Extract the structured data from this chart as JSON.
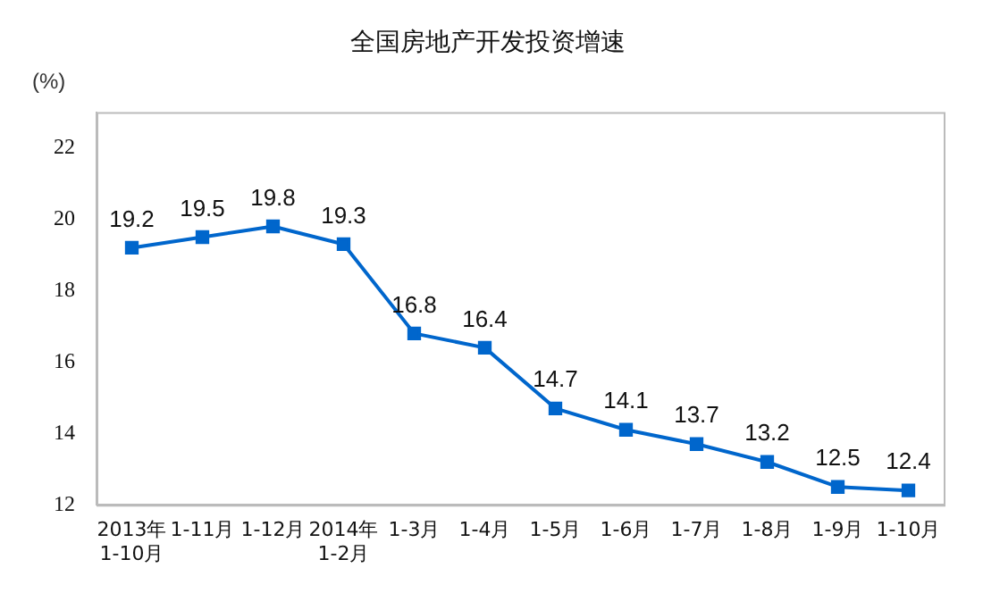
{
  "chart_data": {
    "type": "line",
    "title": "全国房地产开发投资增速",
    "ylabel": "(%)",
    "categories": [
      "2013年\n1-10月",
      "1-11月",
      "1-12月",
      "2014年\n1-2月",
      "1-3月",
      "1-4月",
      "1-5月",
      "1-6月",
      "1-7月",
      "1-8月",
      "1-9月",
      "1-10月"
    ],
    "series": [
      {
        "color": "#0066cc",
        "values": [
          19.2,
          19.5,
          19.8,
          19.3,
          16.8,
          16.4,
          14.7,
          14.1,
          13.7,
          13.2,
          12.5,
          12.4
        ]
      }
    ],
    "ylim": [
      12,
      23
    ],
    "yticks": [
      12,
      14,
      16,
      18,
      20,
      22
    ],
    "grid": false,
    "legend": false,
    "marker": "square",
    "line_style": "solid",
    "data_labels": true
  }
}
